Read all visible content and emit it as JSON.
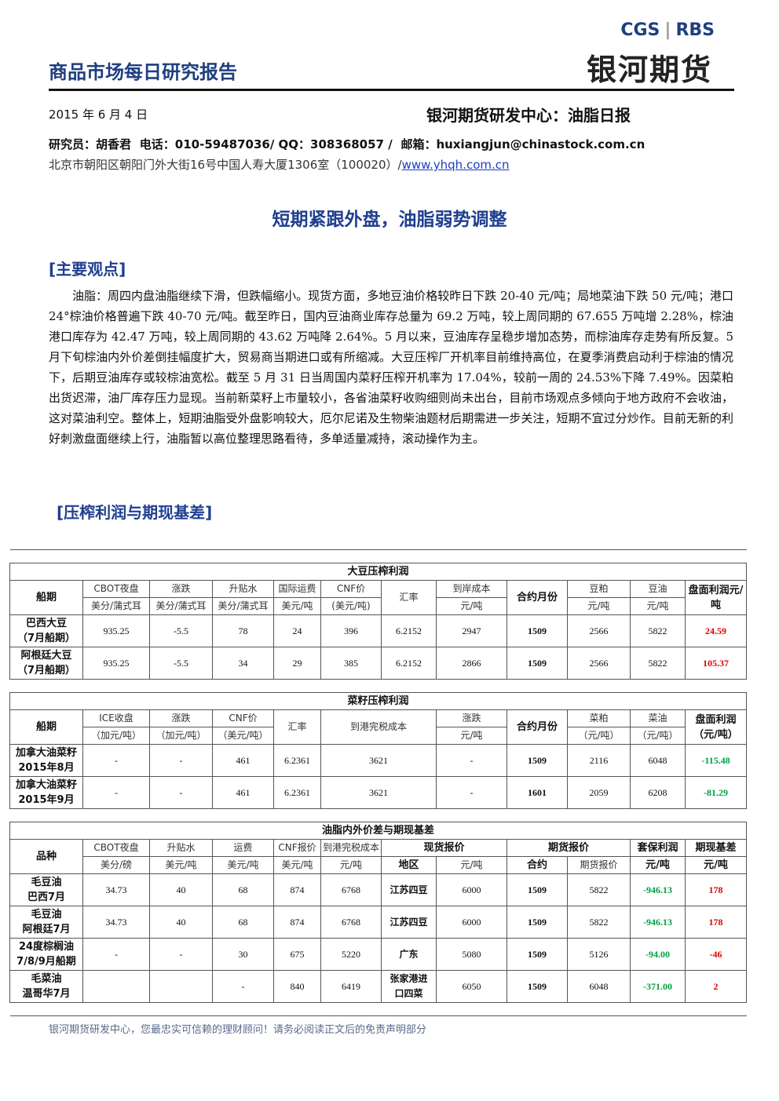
{
  "header": {
    "title": "商品市场每日研究报告",
    "logo_cgs": "CGS",
    "logo_rbs": "RBS",
    "brand": "银河期货",
    "date": "2015 年 6 月 4 日",
    "center": "银河期货研发中心：油脂日报"
  },
  "contact": {
    "researcher": "研究员：胡香君",
    "phone": "电话：010-59487036/ QQ：308368057 /",
    "email": "邮箱：huxiangjun@chinastock.com.cn",
    "address": "北京市朝阳区朝阳门外大街16号中国人寿大厦1306室（100020）/",
    "website": "www.yhqh.com.cn"
  },
  "headline": "短期紧跟外盘，油脂弱势调整",
  "section1": {
    "title": "[主要观点]",
    "paragraph": "油脂：周四内盘油脂继续下滑，但跌幅缩小。现货方面，多地豆油价格较昨日下跌 20-40 元/吨；局地菜油下跌 50 元/吨；港口 24°棕油价格普遍下跌 40-70 元/吨。截至昨日，国内豆油商业库存总量为 69.2 万吨，较上周同期的 67.655 万吨增 2.28%，棕油港口库存为 42.47 万吨，较上周同期的 43.62 万吨降 2.64%。5 月以来，豆油库存呈稳步增加态势，而棕油库存走势有所反复。5 月下旬棕油内外价差倒挂幅度扩大，贸易商当期进口或有所缩减。大豆压榨厂开机率目前维持高位，在夏季消费启动利于棕油的情况下，后期豆油库存或较棕油宽松。截至 5 月 31 日当周国内菜籽压榨开机率为 17.04%，较前一周的 24.53%下降 7.49%。因菜粕出货迟滞，油厂库存压力显现。当前新菜籽上市量较小，各省油菜籽收购细则尚未出台，目前市场观点多倾向于地方政府不会收油，这对菜油利空。整体上，短期油脂受外盘影响较大，厄尔尼诺及生物柴油题材后期需进一步关注，短期不宜过分炒作。目前无新的利好刺激盘面继续上行，油脂暂以高位整理思路看待，多单适量减持，滚动操作为主。"
  },
  "section2": {
    "title": "[压榨利润与期现基差]"
  },
  "tables": [
    {
      "title": "大豆压榨利润",
      "header": [
        [
          "船期",
          "CBOT夜盘",
          "涨跌",
          "升贴水",
          "国际运费",
          "CNF价",
          "汇率",
          "到岸成本",
          "合约月份",
          "豆粕",
          "豆油",
          "盘面利润元/吨"
        ],
        [
          "美分/蒲式耳",
          "美分/蒲式耳",
          "美分/蒲式耳",
          "美元/吨",
          "(美元/吨)",
          "元/吨",
          "元/吨",
          "元/吨"
        ]
      ],
      "rows": [
        [
          "巴西大豆\n（7月船期）",
          "935.25",
          "-5.5",
          "78",
          "24",
          "396",
          "6.2152",
          "2947",
          "1509",
          "2566",
          "5822",
          "24.59"
        ],
        [
          "阿根廷大豆\n（7月船期）",
          "935.25",
          "-5.5",
          "34",
          "29",
          "385",
          "6.2152",
          "2866",
          "1509",
          "2566",
          "5822",
          "105.37"
        ]
      ]
    },
    {
      "title": "菜籽压榨利润",
      "header": [
        [
          "船期",
          "ICE收盘",
          "涨跌",
          "CNF价",
          "汇率",
          "到港完税成本",
          "涨跌",
          "合约月份",
          "菜粕",
          "菜油",
          "盘面利润（元/吨）"
        ],
        [
          "（加元/吨）",
          "（加元/吨）",
          "（美元/吨）",
          "元/吨",
          "（元/吨）",
          "（元/吨）"
        ]
      ],
      "rows": [
        [
          "加拿大油菜籽\n2015年8月",
          "-",
          "-",
          "461",
          "6.2361",
          "3621",
          "-",
          "1509",
          "2116",
          "6048",
          "-115.48"
        ],
        [
          "加拿大油菜籽\n2015年9月",
          "-",
          "-",
          "461",
          "6.2361",
          "3621",
          "-",
          "1601",
          "2059",
          "6208",
          "-81.29"
        ]
      ]
    },
    {
      "title": "油脂内外价差与期现基差",
      "header": [
        [
          "品种",
          "CBOT夜盘",
          "升贴水",
          "运费",
          "CNF报价",
          "到港完税成本",
          "现货报价",
          "期货报价",
          "套保利润",
          "期现基差"
        ],
        [
          "美分/磅",
          "美元/吨",
          "美元/吨",
          "美元/吨",
          "元/吨",
          "地区",
          "元/吨",
          "合约",
          "期货报价",
          "元/吨",
          "元/吨"
        ]
      ],
      "rows": [
        [
          "毛豆油\n巴西7月",
          "34.73",
          "40",
          "68",
          "874",
          "6768",
          "江苏四豆",
          "6000",
          "1509",
          "5822",
          "-946.13",
          "178"
        ],
        [
          "毛豆油\n阿根廷7月",
          "34.73",
          "40",
          "68",
          "874",
          "6768",
          "江苏四豆",
          "6000",
          "1509",
          "5822",
          "-946.13",
          "178"
        ],
        [
          "24度棕榈油\n7/8/9月船期",
          "-",
          "-",
          "30",
          "675",
          "5220",
          "广东",
          "5080",
          "1509",
          "5126",
          "-94.00",
          "-46"
        ],
        [
          "毛菜油\n温哥华7月",
          null,
          null,
          "-",
          "840",
          "6419",
          "张家港进\n口四菜",
          "6050",
          "1509",
          "6048",
          "-371.00",
          "2"
        ]
      ]
    }
  ],
  "footer": "银河期货研发中心，您最忠实可信赖的理财顾问！请务必阅读正文后的免责声明部分"
}
